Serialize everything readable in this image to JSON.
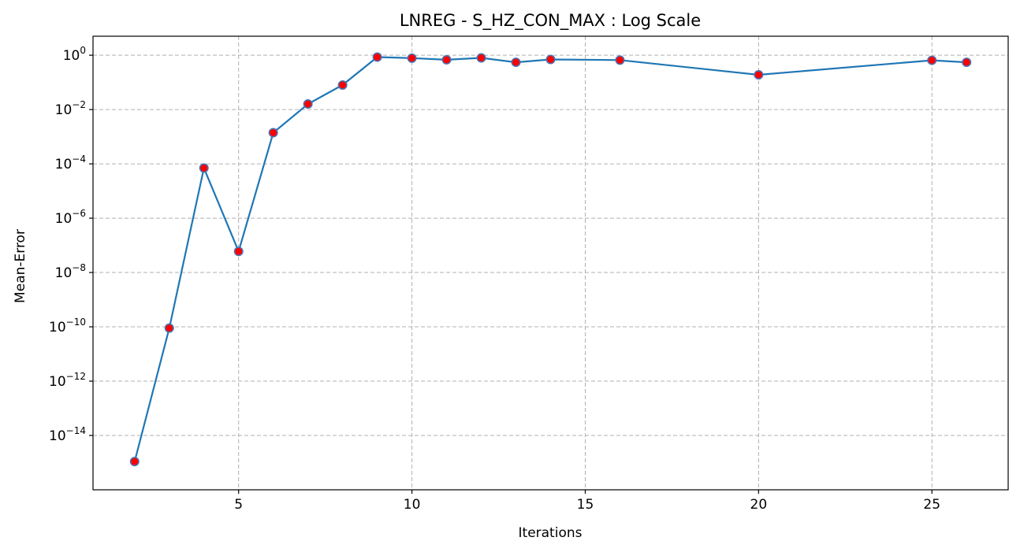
{
  "chart_data": {
    "type": "line",
    "title": "LNREG - S_HZ_CON_MAX : Log Scale",
    "xlabel": "Iterations",
    "ylabel": "Mean-Error",
    "y_scale": "log",
    "x_ticks": [
      5,
      10,
      15,
      20,
      25
    ],
    "y_tick_exponents": [
      0,
      -2,
      -4,
      -6,
      -8,
      -10,
      -12,
      -14
    ],
    "xlim": [
      0.8,
      27.2
    ],
    "ylim": [
      1e-16,
      5
    ],
    "grid": true,
    "line_color": "#1f77b4",
    "marker_face_color": "#ff0000",
    "marker_edge_color": "#4c72b0",
    "series": [
      {
        "x": [
          2,
          3,
          4,
          5,
          6,
          7,
          8,
          9,
          10,
          11,
          12,
          13,
          14,
          16,
          20,
          25,
          26
        ],
        "y": [
          1.1e-15,
          9e-11,
          7e-05,
          6e-08,
          0.0014,
          0.016,
          0.08,
          0.85,
          0.78,
          0.68,
          0.8,
          0.55,
          0.7,
          0.66,
          0.19,
          0.65,
          0.55
        ]
      }
    ]
  }
}
